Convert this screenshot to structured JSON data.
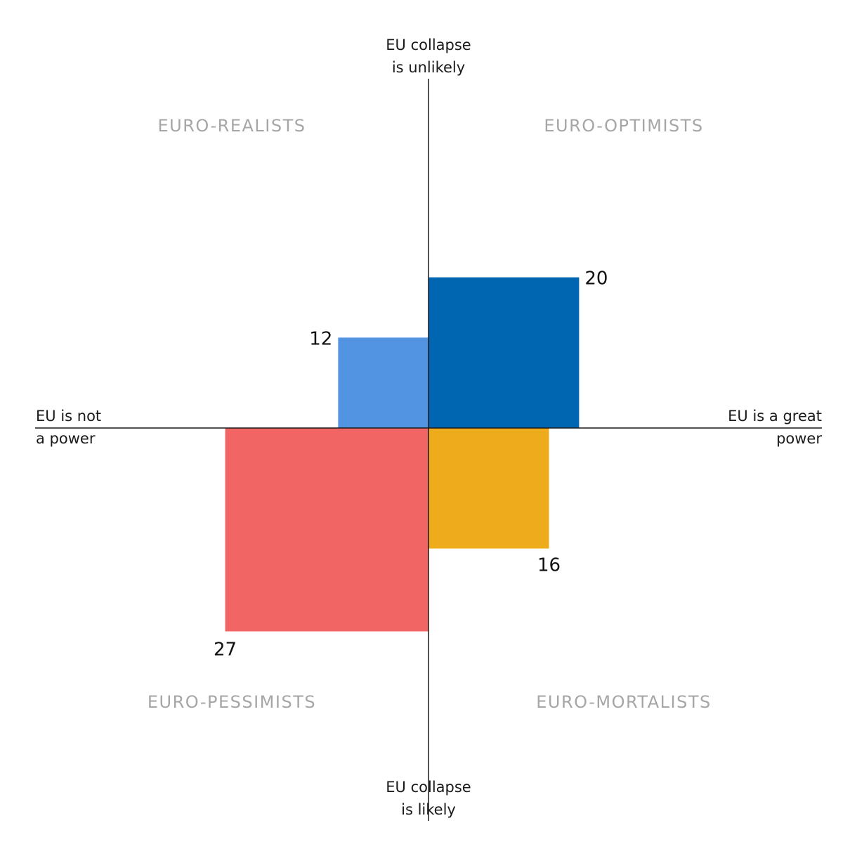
{
  "chart_data": {
    "type": "bar",
    "title": "",
    "axes": {
      "top": [
        "EU collapse",
        "is unlikely"
      ],
      "bottom": [
        "EU collapse",
        "is likely"
      ],
      "left": [
        "EU is not",
        "a power"
      ],
      "right": [
        "EU is a great",
        "power"
      ]
    },
    "categories": [
      "EURO-REALISTS",
      "EURO-OPTIMISTS",
      "EURO-PESSIMISTS",
      "EURO-MORTALISTS"
    ],
    "values": [
      12,
      20,
      27,
      16
    ],
    "quadrants": [
      {
        "name": "EURO-REALISTS",
        "position": "top-left",
        "value": 12,
        "color": "#5294e2"
      },
      {
        "name": "EURO-OPTIMISTS",
        "position": "top-right",
        "value": 20,
        "color": "#0066b2"
      },
      {
        "name": "EURO-PESSIMISTS",
        "position": "bottom-left",
        "value": 27,
        "color": "#f16664"
      },
      {
        "name": "EURO-MORTALISTS",
        "position": "bottom-right",
        "value": 16,
        "color": "#eeac1d"
      }
    ],
    "grid": false,
    "legend": "none"
  }
}
